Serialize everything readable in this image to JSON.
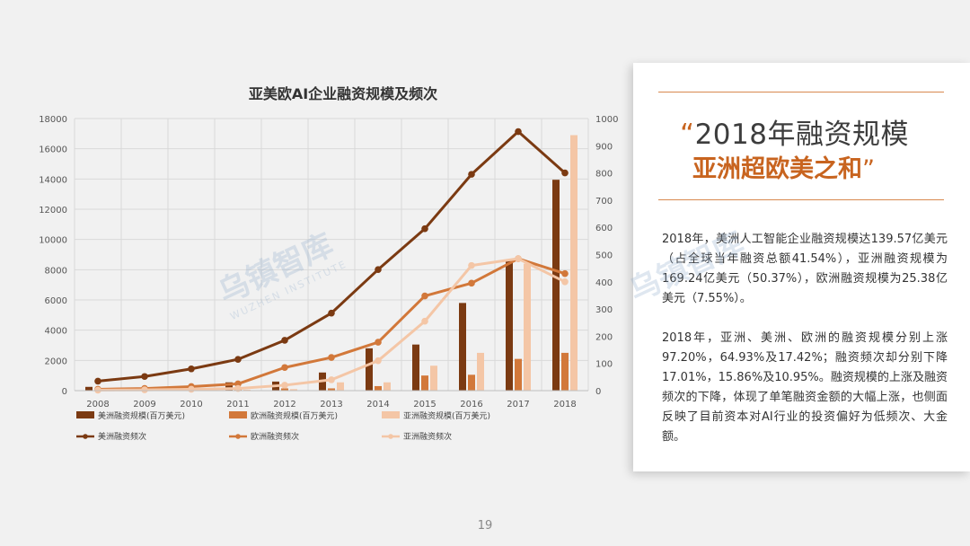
{
  "chart_data": {
    "type": "bar+line",
    "title": "亚美欧AI企业融资规模及频次",
    "categories": [
      "2008",
      "2009",
      "2010",
      "2011",
      "2012",
      "2013",
      "2014",
      "2015",
      "2016",
      "2017",
      "2018"
    ],
    "left_axis": {
      "ylim": [
        0,
        18000
      ],
      "ticks": [
        "0",
        "2000",
        "4000",
        "6000",
        "8000",
        "10000",
        "12000",
        "14000",
        "16000",
        "18000"
      ]
    },
    "right_axis": {
      "ylim": [
        0,
        1000
      ],
      "ticks": [
        "0",
        "100",
        "200",
        "300",
        "400",
        "500",
        "600",
        "700",
        "800",
        "900",
        "1000"
      ]
    },
    "grid": true,
    "legend_position": "bottom",
    "bar_series": [
      {
        "name": "美洲融资规模(百万美元)",
        "color": "#7b3a12",
        "values": [
          250,
          50,
          100,
          550,
          600,
          1200,
          2800,
          3050,
          5800,
          8600,
          13950
        ]
      },
      {
        "name": "欧洲融资规模(百万美元)",
        "color": "#d2783a",
        "values": [
          50,
          40,
          60,
          100,
          150,
          150,
          300,
          1000,
          1050,
          2100,
          2500
        ]
      },
      {
        "name": "亚洲融资规模(百万美元)",
        "color": "#f4c6a6",
        "values": [
          20,
          30,
          40,
          60,
          100,
          550,
          550,
          1650,
          2500,
          8400,
          16900
        ]
      }
    ],
    "line_series": [
      {
        "name": "美洲融资频次",
        "color": "#7b3a12",
        "values": [
          35,
          52,
          80,
          115,
          185,
          285,
          445,
          595,
          795,
          952,
          800
        ]
      },
      {
        "name": "欧洲融资频次",
        "color": "#d2783a",
        "values": [
          5,
          8,
          15,
          25,
          85,
          122,
          178,
          348,
          395,
          485,
          430
        ]
      },
      {
        "name": "亚洲融资频次",
        "color": "#f4c6a6",
        "values": [
          2,
          3,
          5,
          8,
          20,
          40,
          110,
          255,
          460,
          485,
          400
        ]
      }
    ]
  },
  "card": {
    "quote_open": "“",
    "headline_line1": "2018年融资规模",
    "headline_line2": "亚洲超欧美之和",
    "quote_close": "”",
    "paragraph1": "2018年，美洲人工智能企业融资规模达139.57亿美元（占全球当年融资总额41.54%），亚洲融资规模为169.24亿美元（50.37%），欧洲融资规模为25.38亿美元（7.55%）。",
    "paragraph2": "2018年，亚洲、美洲、欧洲的融资规模分别上涨97.20%，64.93%及17.42%；融资频次却分别下降17.01%，15.86%及10.95%。融资规模的上涨及融资频次的下降，体现了单笔融资金额的大幅上涨，也侧面反映了目前资本对AI行业的投资偏好为低频次、大金额。"
  },
  "watermark": {
    "brand": "乌镇智库",
    "english": "WUZHEN INSTITUTE"
  },
  "page_number": "19"
}
